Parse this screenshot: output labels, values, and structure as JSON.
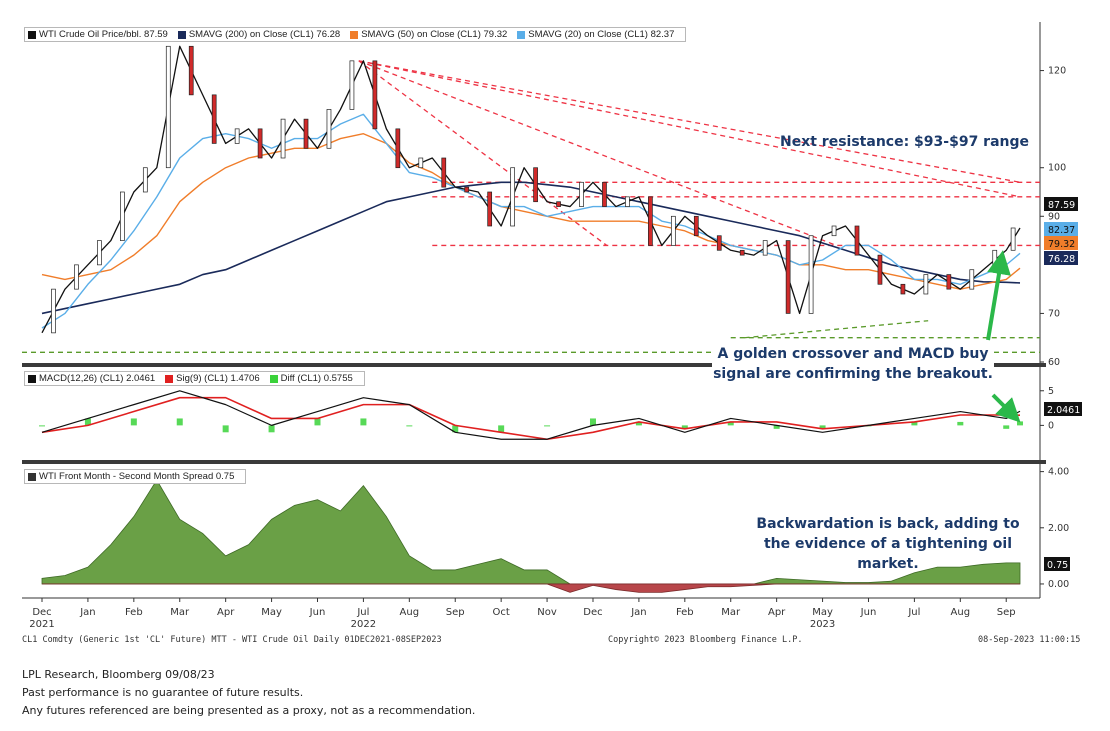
{
  "chart_data": [
    {
      "type": "line",
      "panel": "price",
      "legend": [
        {
          "label": "WTI Crude Oil Price/bbl. 87.59",
          "color": "#111111"
        },
        {
          "label": "SMAVG (200)  on Close (CL1) 76.28",
          "color": "#1a2a5a"
        },
        {
          "label": "SMAVG (50)  on Close (CL1) 79.32",
          "color": "#f07d2a"
        },
        {
          "label": "SMAVG (20)  on Close (CL1) 82.37",
          "color": "#5aaee8"
        }
      ],
      "yticks": [
        "120",
        "100",
        "90",
        "70",
        "60"
      ],
      "ylim": [
        60,
        130
      ],
      "last_values": [
        {
          "label": "87.59",
          "value": 87.59,
          "bg": "#111111",
          "fg": "#ffffff"
        },
        {
          "label": "82.37",
          "value": 82.37,
          "bg": "#5aaee8",
          "fg": "#111111"
        },
        {
          "label": "79.32",
          "value": 79.32,
          "bg": "#f07d2a",
          "fg": "#111111"
        },
        {
          "label": "76.28",
          "value": 76.28,
          "bg": "#1a2a5a",
          "fg": "#ffffff"
        }
      ],
      "x": [
        0,
        0.5,
        1,
        1.5,
        2,
        2.5,
        3,
        3.5,
        4,
        4.5,
        5,
        5.5,
        6,
        6.5,
        7,
        7.5,
        8,
        8.5,
        9,
        9.5,
        10,
        10.5,
        11,
        11.5,
        12,
        12.5,
        13,
        13.5,
        14,
        14.5,
        15,
        15.5,
        16,
        16.5,
        17,
        17.5,
        18,
        18.5,
        19,
        19.5,
        20,
        20.5,
        21,
        21.3
      ],
      "series": [
        {
          "key": "close",
          "color": "#111111",
          "values": [
            66,
            75,
            80,
            85,
            95,
            100,
            125,
            115,
            105,
            108,
            102,
            110,
            104,
            112,
            122,
            108,
            100,
            102,
            96,
            95,
            88,
            100,
            93,
            92,
            97,
            92,
            94,
            84,
            90,
            86,
            83,
            82,
            85,
            70,
            86,
            88,
            82,
            76,
            74,
            78,
            75,
            79,
            83,
            87.59
          ]
        },
        {
          "key": "sma20",
          "color": "#5aaee8",
          "values": [
            67,
            70,
            76,
            81,
            87,
            94,
            102,
            106,
            107,
            106,
            104,
            106,
            106,
            109,
            111,
            105,
            99,
            98,
            96,
            94,
            92,
            92,
            90,
            91,
            92,
            92,
            92,
            89,
            88,
            86,
            84,
            83,
            82,
            80,
            81,
            84,
            84,
            81,
            77,
            77,
            76,
            78,
            80,
            82.37
          ]
        },
        {
          "key": "sma50",
          "color": "#f07d2a",
          "values": [
            78,
            77,
            78,
            79,
            82,
            86,
            93,
            97,
            100,
            102,
            103,
            104,
            104,
            106,
            107,
            105,
            101,
            99,
            96,
            94,
            92,
            91,
            90,
            89,
            89,
            89,
            89,
            88,
            87,
            85,
            84,
            83,
            82,
            80,
            80,
            79,
            79,
            78,
            77,
            76,
            75,
            76,
            77,
            79.32
          ]
        },
        {
          "key": "sma200",
          "color": "#1a2a5a",
          "values": [
            70,
            71,
            72,
            73,
            74,
            75,
            76,
            78,
            79,
            81,
            83,
            85,
            87,
            89,
            91,
            93,
            94,
            95,
            96,
            96.5,
            97,
            97,
            96.5,
            96,
            95,
            94,
            93,
            92,
            91,
            90,
            89,
            88,
            87,
            86,
            84.5,
            83,
            81.5,
            80,
            79,
            78,
            77,
            76.5,
            76.4,
            76.28
          ]
        }
      ],
      "annotations": [
        {
          "text": "Next resistance: $93-$97 range"
        },
        {
          "text": "A golden crossover and MACD buy signal are confirming the breakout."
        }
      ],
      "resistance_levels": [
        97,
        94,
        84
      ],
      "support_levels": [
        65,
        62
      ]
    },
    {
      "type": "line",
      "panel": "macd",
      "legend": [
        {
          "label": "MACD(12,26) (CL1) 2.0461",
          "color": "#111111"
        },
        {
          "label": "Sig(9) (CL1) 1.4706",
          "color": "#e02020"
        },
        {
          "label": "Diff (CL1) 0.5755",
          "color": "#3ad23a"
        }
      ],
      "yticks": [
        "5",
        "0"
      ],
      "ylim": [
        -5,
        8
      ],
      "last_value_label": "2.0461",
      "x": [
        0,
        1,
        2,
        3,
        4,
        5,
        6,
        7,
        8,
        9,
        10,
        11,
        12,
        13,
        14,
        15,
        16,
        17,
        18,
        19,
        20,
        21,
        21.3
      ],
      "series": [
        {
          "key": "macd",
          "color": "#111111",
          "values": [
            -1,
            1,
            3,
            5,
            3,
            0,
            2,
            4,
            3,
            -1,
            -2,
            -2,
            0,
            1,
            -1,
            1,
            0,
            -1,
            0,
            1,
            2,
            1,
            2.0461
          ]
        },
        {
          "key": "signal",
          "color": "#e02020",
          "values": [
            -1,
            0,
            2,
            4,
            4,
            1,
            1,
            3,
            3,
            0,
            -1,
            -2,
            -1,
            0.5,
            -0.5,
            0.5,
            0.5,
            -0.5,
            0,
            0.5,
            1.5,
            1.5,
            1.4706
          ]
        },
        {
          "key": "diff",
          "color": "#3ad23a",
          "values": [
            0,
            1,
            1,
            1,
            -1,
            -1,
            1,
            1,
            0,
            -1,
            -1,
            0,
            1,
            0.5,
            -0.5,
            0.5,
            -0.5,
            -0.5,
            0,
            0.5,
            0.5,
            -0.5,
            0.5755
          ]
        }
      ]
    },
    {
      "type": "area",
      "panel": "spread",
      "legend": [
        {
          "label": "WTI Front Month - Second Month Spread 0.75",
          "color": "#333333"
        }
      ],
      "yticks": [
        "4.00",
        "2.00",
        "0.00"
      ],
      "ylim": [
        -0.5,
        4.2
      ],
      "last_value_label": "0.75",
      "annotation": "Backwardation is back, adding to the evidence of a tightening oil market.",
      "x": [
        0,
        0.5,
        1,
        1.5,
        2,
        2.5,
        3,
        3.5,
        4,
        4.5,
        5,
        5.5,
        6,
        6.5,
        7,
        7.5,
        8,
        8.5,
        9,
        9.5,
        10,
        10.5,
        11,
        11.5,
        12,
        12.5,
        13,
        13.5,
        14,
        14.5,
        15,
        15.5,
        16,
        16.5,
        17,
        17.5,
        18,
        18.5,
        19,
        19.5,
        20,
        20.5,
        21,
        21.3
      ],
      "values": [
        0.2,
        0.3,
        0.6,
        1.4,
        2.4,
        3.7,
        2.3,
        1.8,
        1.0,
        1.4,
        2.3,
        2.8,
        3.0,
        2.6,
        3.5,
        2.4,
        1.0,
        0.5,
        0.5,
        0.7,
        0.9,
        0.5,
        0.5,
        -0.3,
        -0.05,
        -0.2,
        -0.3,
        -0.3,
        -0.2,
        -0.1,
        -0.1,
        -0.05,
        0.2,
        0.15,
        0.1,
        0.05,
        0.05,
        0.1,
        0.4,
        0.6,
        0.6,
        0.7,
        0.75,
        0.75
      ]
    }
  ],
  "x_axis": {
    "months": [
      "Dec",
      "Jan",
      "Feb",
      "Mar",
      "Apr",
      "May",
      "Jun",
      "Jul",
      "Aug",
      "Sep",
      "Oct",
      "Nov",
      "Dec",
      "Jan",
      "Feb",
      "Mar",
      "Apr",
      "May",
      "Jun",
      "Jul",
      "Aug",
      "Sep"
    ],
    "years": [
      {
        "label": "2021",
        "month_index": 0
      },
      {
        "label": "2022",
        "month_index": 7
      },
      {
        "label": "2023",
        "month_index": 17
      }
    ]
  },
  "footer": {
    "left": "CL1 Comdty (Generic 1st 'CL' Future) MTT - WTI Crude Oil  Daily 01DEC2021-08SEP2023",
    "center": "Copyright© 2023 Bloomberg Finance L.P.",
    "right": "08-Sep-2023 11:00:15"
  },
  "source": {
    "line1": "LPL Research, Bloomberg 09/08/23",
    "line2": "Past performance is no guarantee of future results.",
    "line3": "Any futures referenced are being presented as a proxy, not as a recommendation."
  }
}
